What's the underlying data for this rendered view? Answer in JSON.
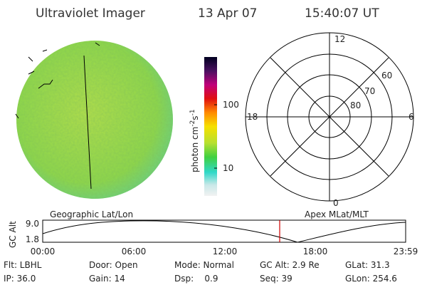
{
  "header": {
    "title": "Ultraviolet Imager",
    "date": "13 Apr 07",
    "time": "15:40:07 UT"
  },
  "colorbar": {
    "label": [
      "photon cm",
      "-2",
      "s",
      "-1"
    ],
    "ticks": [
      "100",
      "10"
    ]
  },
  "polar": {
    "mlt": [
      "12",
      "18",
      "6",
      "0"
    ],
    "mlat": [
      "60",
      "70",
      "80"
    ]
  },
  "strip": {
    "left_label": "Geographic Lat/Lon",
    "right_label": "Apex MLat/MLT",
    "y_label": "GC Alt",
    "yticks": [
      "9.0",
      "1.8"
    ],
    "xticks": [
      "00:00",
      "06:00",
      "12:00",
      "18:00",
      "23:59"
    ]
  },
  "info": {
    "rows": [
      [
        "Flt: LBHL",
        "Door: Open",
        "Mode: Normal",
        "GC Alt: 2.9 Re",
        "GLat: 31.3"
      ],
      [
        "IP: 36.0",
        "Gain: 14",
        "Dsp:    0.9",
        "Seq: 39",
        "GLon: 254.6"
      ]
    ]
  }
}
